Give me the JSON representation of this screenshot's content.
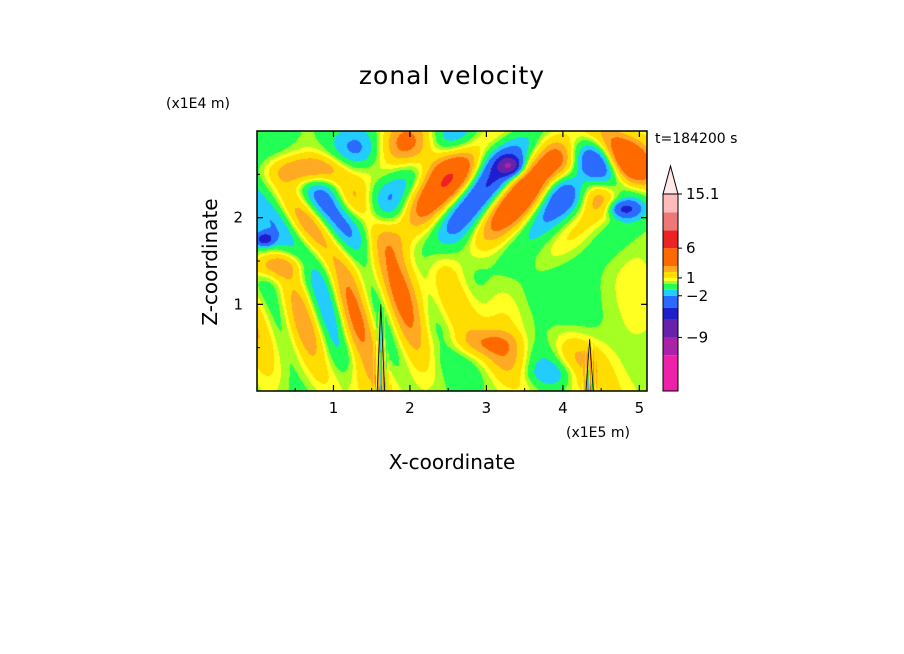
{
  "chart_data": {
    "type": "heatmap",
    "title": "zonal velocity",
    "xlabel": "X-coordinate",
    "ylabel": "Z-coordinate",
    "x_unit": "(x1E5 m)",
    "y_unit": "(x1E4 m)",
    "time_label": "t=184200 s",
    "x_ticks": [
      1,
      2,
      3,
      4,
      5
    ],
    "y_ticks": [
      1,
      2
    ],
    "xlim": [
      0,
      5.1
    ],
    "ylim": [
      0,
      3.0
    ],
    "colorbar": {
      "tick_labels": [
        "15.1",
        "6",
        "1",
        "−2",
        "−9"
      ],
      "tick_values": [
        15.1,
        6,
        1,
        -2,
        -9
      ],
      "levels": [
        {
          "min": -18,
          "max": -12,
          "color": "#ee22aa"
        },
        {
          "min": -12,
          "max": -9,
          "color": "#aa22aa"
        },
        {
          "min": -9,
          "max": -6,
          "color": "#6622aa"
        },
        {
          "min": -6,
          "max": -4,
          "color": "#1e1ecc"
        },
        {
          "min": -4,
          "max": -2,
          "color": "#2b6bff"
        },
        {
          "min": -2,
          "max": -1,
          "color": "#22ccff"
        },
        {
          "min": -1,
          "max": 0,
          "color": "#22ff55"
        },
        {
          "min": 0,
          "max": 0.5,
          "color": "#a6ff22"
        },
        {
          "min": 0.5,
          "max": 1,
          "color": "#ffff22"
        },
        {
          "min": 1,
          "max": 2,
          "color": "#ffdd00"
        },
        {
          "min": 2,
          "max": 3,
          "color": "#ffaa22"
        },
        {
          "min": 3,
          "max": 6,
          "color": "#ff6a00"
        },
        {
          "min": 6,
          "max": 9,
          "color": "#ee2222"
        },
        {
          "min": 9,
          "max": 12,
          "color": "#ee7777"
        },
        {
          "min": 12,
          "max": 15.1,
          "color": "#ffbbbb"
        }
      ],
      "extend": "max"
    },
    "contour_features": [
      {
        "x": 0.0,
        "y": 2.2,
        "rx": 1.3,
        "ry": 1.0,
        "v": -1.5
      },
      {
        "x": 1.6,
        "y": 1.0,
        "rx": 1.4,
        "ry": 0.8,
        "v": 1.5
      },
      {
        "x": 3.5,
        "y": 1.3,
        "rx": 0.9,
        "ry": 0.55,
        "v": -0.5
      },
      {
        "x": 4.6,
        "y": 1.5,
        "rx": 0.7,
        "ry": 0.55,
        "v": -0.5
      },
      {
        "x": 2.3,
        "y": 2.4,
        "rx": 0.9,
        "ry": 0.35,
        "v": 1.2
      },
      {
        "x": 0.7,
        "y": 2.55,
        "rx": 0.5,
        "ry": 0.18,
        "v": 4.0
      },
      {
        "x": 0.2,
        "y": 1.45,
        "rx": 0.4,
        "ry": 0.15,
        "v": 2.5
      },
      {
        "x": 4.7,
        "y": 2.7,
        "rx": 0.5,
        "ry": 0.35,
        "v": 2.0
      },
      {
        "x": 3.3,
        "y": 2.6,
        "rx": 0.15,
        "ry": 0.1,
        "v": -6.0
      },
      {
        "x": 4.8,
        "y": 2.1,
        "rx": 0.2,
        "ry": 0.1,
        "v": -4.0
      },
      {
        "x": 0.1,
        "y": 1.75,
        "rx": 0.12,
        "ry": 0.08,
        "v": -5.0
      },
      {
        "x": 4.3,
        "y": 0.35,
        "rx": 0.5,
        "ry": 0.35,
        "v": 1.2
      },
      {
        "x": 3.0,
        "y": 0.55,
        "rx": 0.5,
        "ry": 0.15,
        "v": 1.5
      },
      {
        "x": 3.8,
        "y": 0.2,
        "rx": 0.4,
        "ry": 0.15,
        "v": -1.5
      },
      {
        "x": 1.2,
        "y": 0.4,
        "rx": 0.5,
        "ry": 0.2,
        "v": -0.4
      }
    ],
    "wave_packets": [
      {
        "x": 3.1,
        "y": 2.35,
        "rx": 1.5,
        "ry": 0.6,
        "kx": 5.5,
        "kz": -5.0,
        "amp": 5.0
      },
      {
        "x": 0.8,
        "y": 2.0,
        "rx": 0.8,
        "ry": 0.45,
        "kx": 7.0,
        "kz": 5.0,
        "amp": 3.0
      },
      {
        "x": 4.6,
        "y": 2.6,
        "rx": 0.6,
        "ry": 0.4,
        "kx": 6.0,
        "kz": 6.0,
        "amp": 3.5
      },
      {
        "x": 2.1,
        "y": 2.75,
        "rx": 1.2,
        "ry": 0.3,
        "kx": 4.0,
        "kz": 2.0,
        "amp": 2.5
      },
      {
        "x": 1.2,
        "y": 0.9,
        "rx": 1.3,
        "ry": 0.7,
        "kx": 9.0,
        "kz": 3.0,
        "amp": 2.4
      },
      {
        "x": 3.5,
        "y": 0.35,
        "rx": 1.1,
        "ry": 0.35,
        "kx": 6.0,
        "kz": 3.0,
        "amp": 1.6
      }
    ],
    "mountains": [
      {
        "x": 1.62,
        "height": 1.0,
        "width": 0.06
      },
      {
        "x": 4.35,
        "height": 0.6,
        "width": 0.06
      }
    ]
  }
}
